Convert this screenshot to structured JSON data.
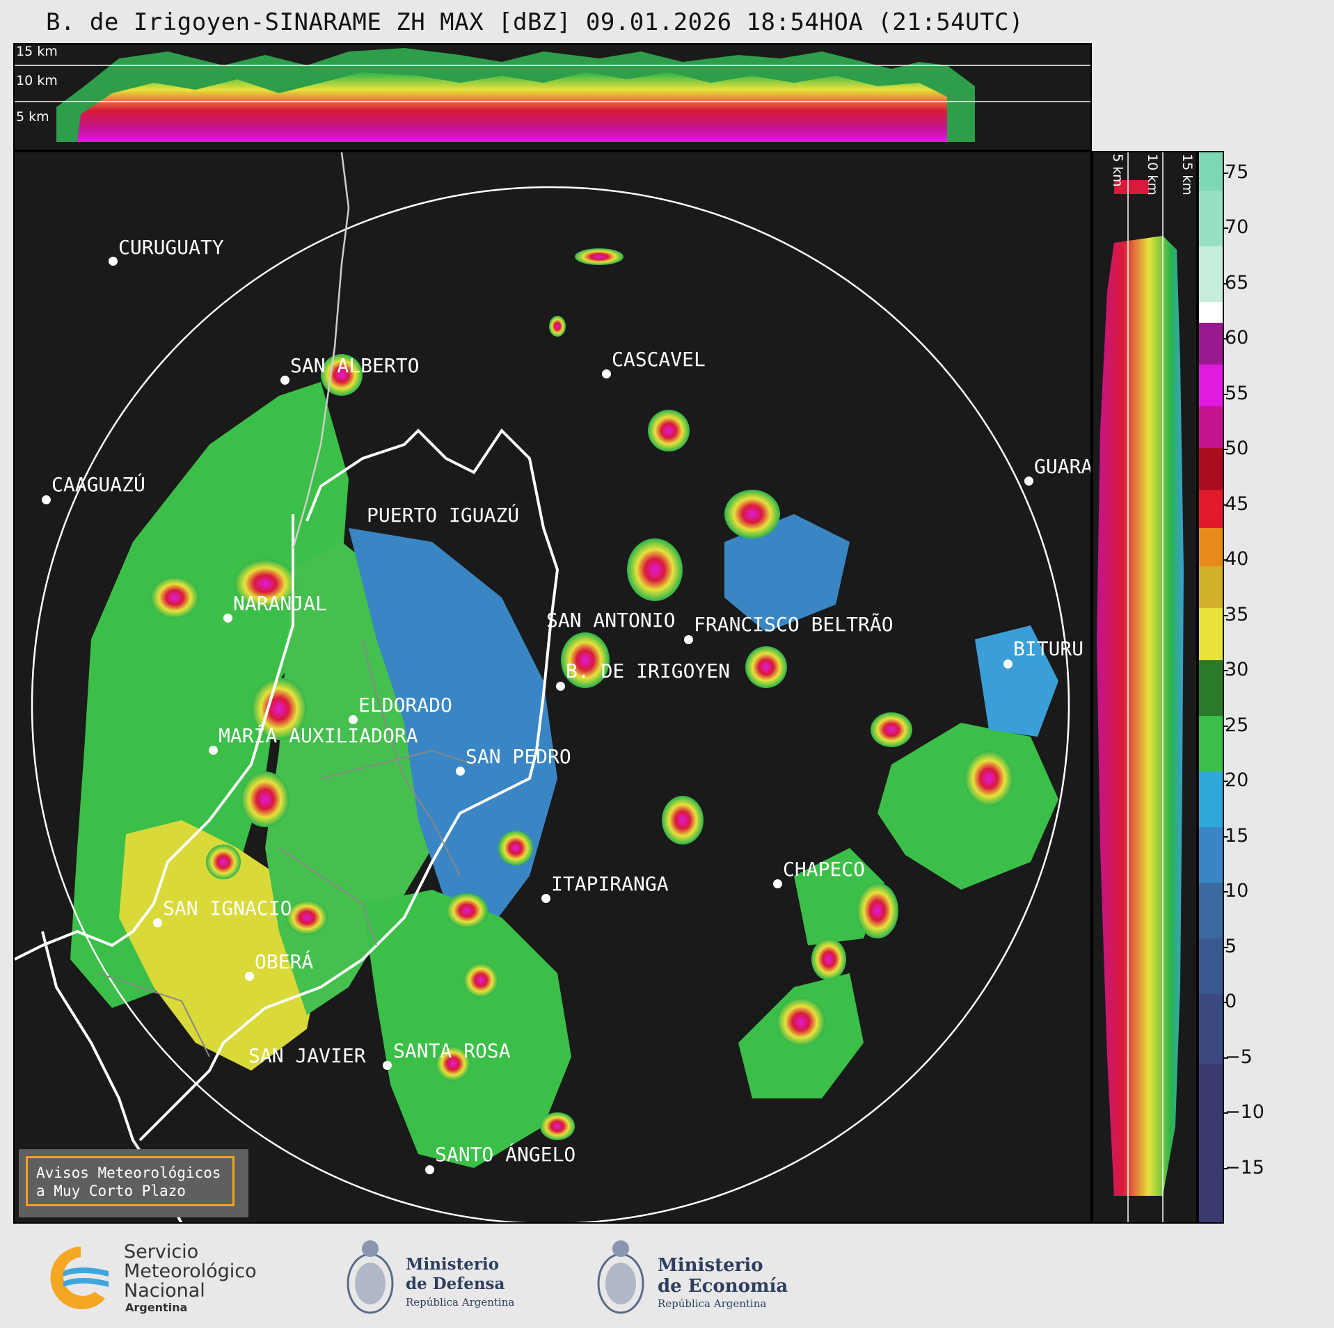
{
  "title": "B. de Irigoyen-SINARAME ZH MAX [dBZ] 09.01.2026 18:54HOA (21:54UTC)",
  "top_strip": {
    "altitude_labels": [
      "15 km",
      "10 km",
      "5 km"
    ]
  },
  "side_strip": {
    "altitude_labels": [
      "5 km",
      "10 km",
      "15 km"
    ]
  },
  "colorbar": {
    "ticks": [
      "75",
      "70",
      "65",
      "60",
      "55",
      "50",
      "45",
      "40",
      "35",
      "30",
      "25",
      "20",
      "15",
      "10",
      "5",
      "0",
      "−5",
      "−10",
      "−15"
    ],
    "min": -20,
    "max": 77
  },
  "cities": [
    {
      "name": "CURUGUATY"
    },
    {
      "name": "SAN ALBERTO"
    },
    {
      "name": "CASCAVEL"
    },
    {
      "name": "CAAGUAZÚ"
    },
    {
      "name": "GUARA"
    },
    {
      "name": "PUERTO IGUAZÚ"
    },
    {
      "name": "NARANJAL"
    },
    {
      "name": "SAN ANTONIO"
    },
    {
      "name": "FRANCISCO BELTRÃO"
    },
    {
      "name": "BITURU"
    },
    {
      "name": "B. DE IRIGOYEN"
    },
    {
      "name": "ELDORADO"
    },
    {
      "name": "MARÍA AUXILIADORA"
    },
    {
      "name": "SAN PEDRO"
    },
    {
      "name": "CHAPECO"
    },
    {
      "name": "ITAPIRANGA"
    },
    {
      "name": "SAN IGNACIO"
    },
    {
      "name": "OBERÁ"
    },
    {
      "name": "SAN JAVIER"
    },
    {
      "name": "SANTA ROSA"
    },
    {
      "name": "SANTO ÁNGELO"
    }
  ],
  "alert": {
    "line1": "Avisos Meteorológicos",
    "line2": "a Muy Corto Plazo"
  },
  "footer": {
    "smn": {
      "line1": "Servicio",
      "line2": "Meteorológico",
      "line3": "Nacional",
      "line4": "Argentina"
    },
    "defensa": {
      "line1": "Ministerio",
      "line2": "de Defensa",
      "line3": "República Argentina"
    },
    "economia": {
      "line1": "Ministerio",
      "line2": "de Economía",
      "line3": "República Argentina"
    }
  },
  "colors": {
    "background": "#1a1a1a",
    "page": "#e8e8e8",
    "alert_border": "#f4a21a",
    "smn_orange": "#f5a623",
    "smn_blue": "#3fa6dc"
  }
}
